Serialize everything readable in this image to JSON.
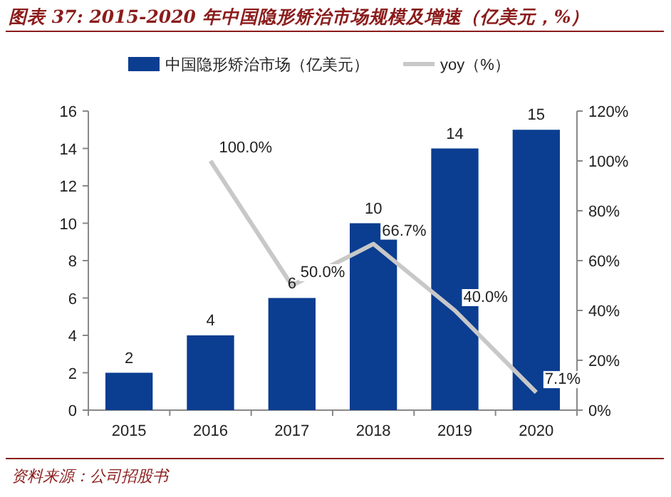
{
  "chart_data": {
    "type": "bar",
    "title": "图表 37:  2015-2020 年中国隐形矫治市场规模及增速（亿美元，%）",
    "categories": [
      "2015",
      "2016",
      "2017",
      "2018",
      "2019",
      "2020"
    ],
    "series": [
      {
        "name": "中国隐形矫治市场（亿美元）",
        "color": "#0b3d91",
        "values": [
          2,
          4,
          6,
          10,
          14,
          15
        ],
        "value_labels": [
          "2",
          "4",
          "6",
          "10",
          "14",
          "15"
        ]
      },
      {
        "name": "yoy（%）",
        "type": "line",
        "axis": "y2",
        "color": "#c8c8c8",
        "values": [
          null,
          100,
          50,
          66.7,
          40,
          7.1
        ],
        "value_labels": [
          null,
          "100.0%",
          "50.0%",
          "66.7%",
          "40.0%",
          "7.1%"
        ]
      }
    ],
    "ylim": [
      0,
      16
    ],
    "yticks": [
      0,
      2,
      4,
      6,
      8,
      10,
      12,
      14,
      16
    ],
    "y2lim": [
      0,
      120
    ],
    "y2ticks": [
      {
        "value": 0,
        "label": "0%"
      },
      {
        "value": 20,
        "label": "20%"
      },
      {
        "value": 40,
        "label": "40%"
      },
      {
        "value": 60,
        "label": "60%"
      },
      {
        "value": 80,
        "label": "80%"
      },
      {
        "value": 100,
        "label": "100%"
      },
      {
        "value": 120,
        "label": "120%"
      }
    ],
    "legend": "top",
    "grid": false,
    "annotations": [
      "资料来源：公司招股书"
    ]
  }
}
